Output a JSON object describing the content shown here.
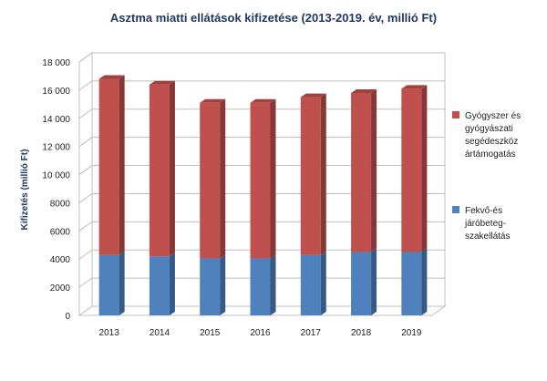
{
  "chart_data": {
    "type": "bar",
    "stacked": true,
    "title": "Asztma miatti ellátások kifizetése (2013-2019. év, millió Ft)",
    "ylabel": "Kifizetés (millió Ft)",
    "xlabel": "",
    "categories": [
      "2013",
      "2014",
      "2015",
      "2016",
      "2017",
      "2018",
      "2019"
    ],
    "y_ticks": [
      "0",
      "2000",
      "4000",
      "6000",
      "8000",
      "10 000",
      "12 000",
      "14 000",
      "16 000",
      "18 000"
    ],
    "ylim": [
      0,
      18000
    ],
    "grid": true,
    "legend_position": "right",
    "series": [
      {
        "name": "Fekvő-és járóbeteg-szakellátás",
        "legend_lines": [
          "Fekvő-és",
          "járóbeteg-",
          "szakellátás"
        ],
        "color": "#4f81bd",
        "values": [
          4300,
          4200,
          4050,
          4050,
          4300,
          4500,
          4500
        ]
      },
      {
        "name": "Gyógyszer és gyógyászati segédeszköz ártámogatás",
        "legend_lines": [
          "Gyógyszer és",
          "gyógyászati",
          "segédeszköz",
          "ártámogatás"
        ],
        "color": "#c0504d",
        "values": [
          12500,
          12200,
          11050,
          11050,
          11200,
          11300,
          11600
        ]
      }
    ]
  }
}
